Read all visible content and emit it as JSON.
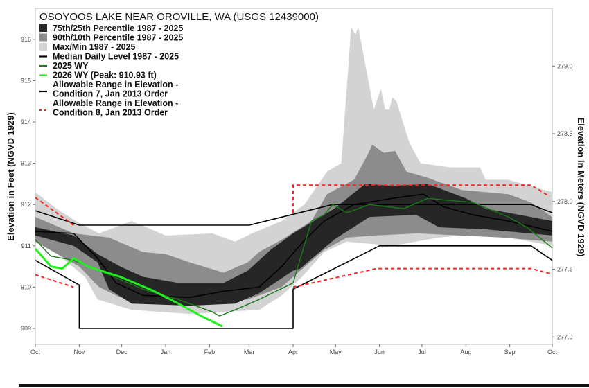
{
  "chart_data": {
    "type": "area",
    "title": "OSOYOOS LAKE NEAR OROVILLE, WA (USGS 12439000)",
    "ylabel": "Elevation in Feet (NGVD 1929)",
    "ylabel_right": "Elevation in Meters (NGVD 1929)",
    "xlabel": "",
    "x_unit": "day of water year (0 = Oct 1)",
    "xlim": [
      0,
      365
    ],
    "ylim": [
      908.6,
      916.5
    ],
    "x_ticks": [
      {
        "day": 0,
        "label": "Oct"
      },
      {
        "day": 31,
        "label": "Nov"
      },
      {
        "day": 61,
        "label": "Dec"
      },
      {
        "day": 92,
        "label": "Jan"
      },
      {
        "day": 123,
        "label": "Feb"
      },
      {
        "day": 151,
        "label": "Mar"
      },
      {
        "day": 182,
        "label": "Apr"
      },
      {
        "day": 212,
        "label": "May"
      },
      {
        "day": 243,
        "label": "Jun"
      },
      {
        "day": 273,
        "label": "Jul"
      },
      {
        "day": 304,
        "label": "Aug"
      },
      {
        "day": 335,
        "label": "Sep"
      },
      {
        "day": 365,
        "label": "Oct"
      }
    ],
    "y_ticks": [
      "909",
      "910",
      "911",
      "912",
      "913",
      "914",
      "915",
      "916"
    ],
    "y_ticks_right": [
      "277.0",
      "277.5",
      "278.0",
      "278.5",
      "279.0"
    ],
    "legend_placement": "top-left",
    "legend": [
      {
        "label": "75th/25th Percentile 1987 - 2025",
        "kind": "box",
        "color": "#262626"
      },
      {
        "label": "90th/10th Percentile 1987 - 2025",
        "kind": "box",
        "color": "#8c8c8c"
      },
      {
        "label": "Max/Min 1987 - 2025",
        "kind": "box",
        "color": "#d3d3d3"
      },
      {
        "label": "Median Daily Level 1987 - 2025",
        "kind": "line",
        "color": "#000000"
      },
      {
        "label": "2025  WY",
        "kind": "line",
        "color": "#1a7a1a"
      },
      {
        "label": "2026 WY (Peak: 910.93 ft)",
        "kind": "line",
        "color": "#22ee22"
      },
      {
        "label": "Allowable Range in Elevation -",
        "label2": "Condition 7, Jan 2013 Order",
        "kind": "line",
        "color": "#000000"
      },
      {
        "label": "Allowable Range in Elevation -",
        "label2": "Condition 8, Jan 2013 Order",
        "kind": "dash",
        "color": "#ff2020"
      }
    ],
    "bands": [
      {
        "name": "max-min",
        "color": "#d3d3d3",
        "upper": [
          [
            0,
            912.3
          ],
          [
            15,
            911.9
          ],
          [
            31,
            911.55
          ],
          [
            45,
            911.3
          ],
          [
            68,
            911.6
          ],
          [
            92,
            911.25
          ],
          [
            125,
            911.3
          ],
          [
            141,
            911.1
          ],
          [
            153,
            911.3
          ],
          [
            174,
            911.6
          ],
          [
            190,
            912.0
          ],
          [
            206,
            912.8
          ],
          [
            216,
            913.0
          ],
          [
            223,
            916.3
          ],
          [
            226,
            916.1
          ],
          [
            228,
            916.3
          ],
          [
            239,
            914.3
          ],
          [
            244,
            914.8
          ],
          [
            247,
            914.3
          ],
          [
            250,
            914.3
          ],
          [
            252,
            914.6
          ],
          [
            255,
            914.5
          ],
          [
            264,
            913.5
          ],
          [
            272,
            913.0
          ],
          [
            293,
            912.9
          ],
          [
            314,
            912.9
          ],
          [
            318,
            912.6
          ],
          [
            334,
            912.6
          ],
          [
            365,
            912.3
          ]
        ],
        "lower": [
          [
            0,
            911.25
          ],
          [
            35,
            910.25
          ],
          [
            44,
            909.7
          ],
          [
            68,
            909.45
          ],
          [
            109,
            909.35
          ],
          [
            133,
            909.4
          ],
          [
            158,
            909.45
          ],
          [
            174,
            909.8
          ],
          [
            187,
            910.2
          ],
          [
            204,
            910.85
          ],
          [
            220,
            911.1
          ],
          [
            252,
            911.0
          ],
          [
            285,
            911.2
          ],
          [
            318,
            911.3
          ],
          [
            350,
            911.1
          ],
          [
            365,
            911.0
          ]
        ]
      },
      {
        "name": "90th-10th",
        "color": "#8c8c8c",
        "upper": [
          [
            0,
            911.7
          ],
          [
            27,
            911.3
          ],
          [
            52,
            911.2
          ],
          [
            76,
            910.85
          ],
          [
            92,
            910.8
          ],
          [
            109,
            910.6
          ],
          [
            133,
            910.35
          ],
          [
            150,
            910.6
          ],
          [
            158,
            910.85
          ],
          [
            174,
            911.15
          ],
          [
            195,
            911.6
          ],
          [
            206,
            912.25
          ],
          [
            225,
            912.6
          ],
          [
            233,
            913.1
          ],
          [
            238,
            913.45
          ],
          [
            246,
            913.25
          ],
          [
            254,
            913.3
          ],
          [
            262,
            912.8
          ],
          [
            277,
            912.65
          ],
          [
            301,
            912.35
          ],
          [
            334,
            912.25
          ],
          [
            350,
            912.05
          ],
          [
            365,
            911.7
          ]
        ],
        "lower": [
          [
            0,
            911.1
          ],
          [
            31,
            910.5
          ],
          [
            45,
            910.0
          ],
          [
            60,
            909.75
          ],
          [
            92,
            909.65
          ],
          [
            125,
            909.6
          ],
          [
            150,
            909.7
          ],
          [
            174,
            910.0
          ],
          [
            187,
            910.4
          ],
          [
            204,
            910.9
          ],
          [
            220,
            911.2
          ],
          [
            240,
            911.25
          ],
          [
            270,
            911.3
          ],
          [
            300,
            911.25
          ],
          [
            330,
            911.2
          ],
          [
            365,
            911.1
          ]
        ]
      },
      {
        "name": "75th-25th",
        "color": "#262626",
        "upper": [
          [
            0,
            911.45
          ],
          [
            27,
            911.25
          ],
          [
            44,
            910.8
          ],
          [
            60,
            910.5
          ],
          [
            76,
            910.25
          ],
          [
            101,
            910.1
          ],
          [
            133,
            910.1
          ],
          [
            150,
            910.4
          ],
          [
            166,
            910.9
          ],
          [
            182,
            911.3
          ],
          [
            211,
            911.9
          ],
          [
            233,
            912.5
          ],
          [
            252,
            912.45
          ],
          [
            277,
            912.5
          ],
          [
            304,
            912.15
          ],
          [
            318,
            911.9
          ],
          [
            334,
            911.8
          ],
          [
            365,
            911.6
          ]
        ],
        "lower": [
          [
            0,
            911.25
          ],
          [
            27,
            911.0
          ],
          [
            44,
            910.6
          ],
          [
            52,
            909.95
          ],
          [
            68,
            909.6
          ],
          [
            109,
            909.55
          ],
          [
            141,
            909.6
          ],
          [
            158,
            909.85
          ],
          [
            182,
            910.4
          ],
          [
            187,
            910.45
          ],
          [
            211,
            911.15
          ],
          [
            236,
            911.7
          ],
          [
            269,
            911.75
          ],
          [
            285,
            911.45
          ],
          [
            318,
            911.4
          ],
          [
            365,
            911.25
          ]
        ]
      }
    ],
    "series": [
      {
        "name": "Median Daily Level 1987 - 2025",
        "color": "#000000",
        "width": 1.5,
        "points": [
          [
            0,
            911.35
          ],
          [
            27,
            911.3
          ],
          [
            44,
            910.7
          ],
          [
            57,
            910.1
          ],
          [
            76,
            909.8
          ],
          [
            109,
            909.75
          ],
          [
            133,
            909.9
          ],
          [
            158,
            910.0
          ],
          [
            174,
            910.5
          ],
          [
            189,
            911.1
          ],
          [
            204,
            911.6
          ],
          [
            225,
            912.0
          ],
          [
            252,
            912.15
          ],
          [
            274,
            912.25
          ],
          [
            288,
            911.95
          ],
          [
            309,
            911.75
          ],
          [
            334,
            911.6
          ],
          [
            365,
            911.35
          ]
        ]
      },
      {
        "name": "2025 WY",
        "color": "#1a7a1a",
        "width": 1.4,
        "points": [
          [
            0,
            911.15
          ],
          [
            11,
            910.75
          ],
          [
            27,
            910.65
          ],
          [
            52,
            910.3
          ],
          [
            76,
            909.95
          ],
          [
            101,
            909.7
          ],
          [
            125,
            909.4
          ],
          [
            130,
            909.3
          ],
          [
            141,
            909.45
          ],
          [
            158,
            909.7
          ],
          [
            182,
            910.1
          ],
          [
            195,
            911.6
          ],
          [
            204,
            911.75
          ],
          [
            210,
            912.0
          ],
          [
            220,
            911.8
          ],
          [
            236,
            912.0
          ],
          [
            260,
            911.9
          ],
          [
            277,
            912.15
          ],
          [
            309,
            912.05
          ],
          [
            334,
            911.7
          ],
          [
            347,
            911.45
          ],
          [
            365,
            910.95
          ]
        ]
      },
      {
        "name": "2026 WY",
        "color": "#22ee22",
        "width": 3,
        "points": [
          [
            0,
            910.93
          ],
          [
            11,
            910.5
          ],
          [
            19,
            910.45
          ],
          [
            24,
            910.6
          ],
          [
            27,
            910.7
          ],
          [
            37,
            910.5
          ],
          [
            60,
            910.25
          ],
          [
            84,
            909.9
          ],
          [
            101,
            909.6
          ],
          [
            117,
            909.3
          ],
          [
            132,
            909.05
          ]
        ]
      },
      {
        "name": "Condition 7 upper",
        "color": "#000000",
        "width": 1.6,
        "dash": false,
        "points": [
          [
            0,
            911.85
          ],
          [
            31,
            911.5
          ],
          [
            151,
            911.5
          ],
          [
            210,
            912.0
          ],
          [
            350,
            912.0
          ],
          [
            365,
            911.8
          ]
        ]
      },
      {
        "name": "Condition 7 lower",
        "color": "#000000",
        "width": 1.6,
        "dash": false,
        "points": [
          [
            0,
            910.65
          ],
          [
            31,
            910.05
          ],
          [
            31,
            909.0
          ],
          [
            182,
            909.0
          ],
          [
            182,
            909.95
          ],
          [
            243,
            911.0
          ],
          [
            350,
            911.0
          ],
          [
            365,
            910.65
          ]
        ]
      },
      {
        "name": "Condition 8 upper (fall)",
        "color": "#ff2020",
        "width": 2,
        "dash": true,
        "points": [
          [
            0,
            912.17
          ],
          [
            27,
            911.5
          ]
        ]
      },
      {
        "name": "Condition 8 upper (spring-summer)",
        "color": "#ff2020",
        "width": 2,
        "dash": true,
        "points": [
          [
            182,
            911.8
          ],
          [
            182,
            912.47
          ],
          [
            350,
            912.47
          ],
          [
            363,
            912.2
          ]
        ]
      },
      {
        "name": "Condition 8 lower (fall)",
        "color": "#ff2020",
        "width": 2,
        "dash": true,
        "points": [
          [
            0,
            910.3
          ],
          [
            27,
            910.0
          ]
        ]
      },
      {
        "name": "Condition 8 lower (spring-summer)",
        "color": "#ff2020",
        "width": 2,
        "dash": true,
        "points": [
          [
            182,
            910.0
          ],
          [
            241,
            910.45
          ],
          [
            350,
            910.45
          ],
          [
            363,
            910.33
          ]
        ]
      }
    ]
  }
}
